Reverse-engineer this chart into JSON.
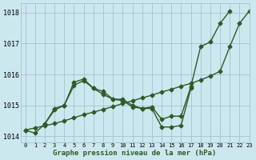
{
  "title": "Graphe pression niveau de la mer (hPa)",
  "background_color": "#cce8ef",
  "grid_color": "#99bbcc",
  "line_color": "#2d5a27",
  "xlim": [
    -0.5,
    23
  ],
  "ylim": [
    1013.8,
    1018.3
  ],
  "yticks": [
    1014,
    1015,
    1016,
    1017,
    1018
  ],
  "xticks": [
    0,
    1,
    2,
    3,
    4,
    5,
    6,
    7,
    8,
    9,
    10,
    11,
    12,
    13,
    14,
    15,
    16,
    17,
    18,
    19,
    20,
    21,
    22,
    23
  ],
  "series1_x": [
    0,
    1,
    2,
    3,
    4,
    5,
    6,
    7,
    8,
    9,
    10,
    11,
    12,
    13,
    14,
    15,
    16,
    17,
    18,
    19,
    20,
    21,
    22,
    23
  ],
  "series1_y": [
    1014.2,
    1014.27,
    1014.34,
    1014.41,
    1014.5,
    1014.6,
    1014.7,
    1014.78,
    1014.87,
    1014.96,
    1015.06,
    1015.15,
    1015.24,
    1015.33,
    1015.43,
    1015.52,
    1015.62,
    1015.71,
    1015.82,
    1015.95,
    1016.1,
    1016.9,
    1017.65,
    1018.05
  ],
  "series2_x": [
    0,
    1,
    2,
    3,
    4,
    5,
    6,
    7,
    8,
    9,
    10,
    11,
    12,
    13,
    14,
    15,
    16,
    17,
    18,
    19,
    20,
    21,
    22,
    23
  ],
  "series2_y": [
    1014.2,
    1014.1,
    1014.4,
    1014.9,
    1015.0,
    1015.65,
    1015.8,
    1015.55,
    1015.35,
    1015.2,
    1015.15,
    1014.95,
    1014.9,
    1014.95,
    1014.55,
    1014.65,
    1014.65,
    1015.6,
    1016.9,
    1017.05,
    1017.65,
    1018.05,
    null,
    null
  ],
  "series3_x": [
    2,
    3,
    4,
    5,
    6,
    7,
    8,
    9,
    10,
    11,
    12,
    13,
    14,
    15,
    16,
    17
  ],
  "series3_y": [
    1014.4,
    1014.85,
    1015.0,
    1015.75,
    1015.85,
    1015.55,
    1015.45,
    1015.2,
    1015.2,
    1015.0,
    1014.9,
    1014.9,
    1014.3,
    1014.3,
    1014.35,
    1015.55
  ],
  "marker": "D",
  "marker_size": 2.5,
  "linewidth": 1.0
}
